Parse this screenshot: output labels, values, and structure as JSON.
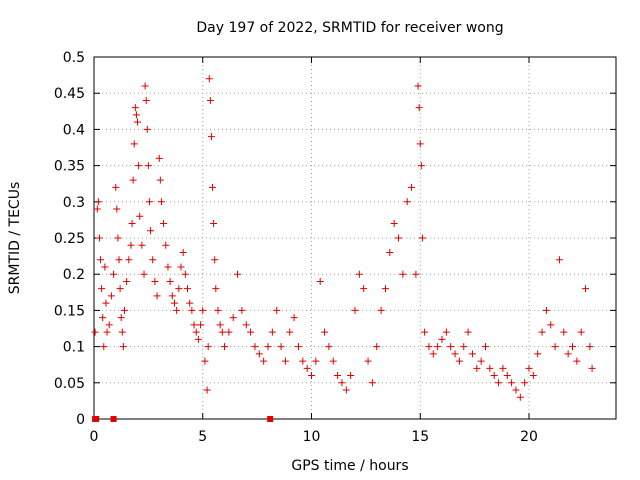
{
  "chart_data": {
    "type": "scatter",
    "title": "Day 197 of 2022, SRMTID for receiver wong",
    "xlabel": "GPS time / hours",
    "ylabel": "SRMTID / TECUs",
    "xlim": [
      0,
      24
    ],
    "ylim": [
      0,
      0.5
    ],
    "xticks": [
      0,
      5,
      10,
      15,
      20
    ],
    "xtick_labels": [
      "0",
      "5",
      "10",
      "15",
      "20"
    ],
    "yticks": [
      0,
      0.05,
      0.1,
      0.15,
      0.2,
      0.25,
      0.3,
      0.35,
      0.4,
      0.45,
      0.5
    ],
    "ytick_labels": [
      "0",
      "0.05",
      "0.1",
      "0.15",
      "0.2",
      "0.25",
      "0.3",
      "0.35",
      "0.4",
      "0.45",
      "0.5"
    ],
    "grid": true,
    "marker": "+",
    "color": "#e00000",
    "series": [
      {
        "name": "SRMTID",
        "points": [
          [
            0.05,
            0.12
          ],
          [
            0.15,
            0.29
          ],
          [
            0.2,
            0.3
          ],
          [
            0.25,
            0.25
          ],
          [
            0.3,
            0.22
          ],
          [
            0.35,
            0.18
          ],
          [
            0.4,
            0.14
          ],
          [
            0.45,
            0.1
          ],
          [
            0.5,
            0.21
          ],
          [
            0.55,
            0.16
          ],
          [
            0.6,
            0.12
          ],
          [
            0.7,
            0.13
          ],
          [
            0.8,
            0.17
          ],
          [
            0.9,
            0.2
          ],
          [
            1.0,
            0.32
          ],
          [
            1.05,
            0.29
          ],
          [
            1.1,
            0.25
          ],
          [
            1.15,
            0.22
          ],
          [
            1.2,
            0.18
          ],
          [
            1.25,
            0.14
          ],
          [
            1.3,
            0.12
          ],
          [
            1.35,
            0.1
          ],
          [
            1.4,
            0.15
          ],
          [
            1.5,
            0.19
          ],
          [
            1.6,
            0.22
          ],
          [
            1.7,
            0.24
          ],
          [
            1.75,
            0.27
          ],
          [
            1.8,
            0.33
          ],
          [
            1.85,
            0.38
          ],
          [
            1.9,
            0.43
          ],
          [
            1.95,
            0.42
          ],
          [
            2.0,
            0.41
          ],
          [
            2.05,
            0.35
          ],
          [
            2.1,
            0.28
          ],
          [
            2.2,
            0.24
          ],
          [
            2.3,
            0.2
          ],
          [
            2.35,
            0.46
          ],
          [
            2.4,
            0.44
          ],
          [
            2.45,
            0.4
          ],
          [
            2.5,
            0.35
          ],
          [
            2.55,
            0.3
          ],
          [
            2.6,
            0.26
          ],
          [
            2.7,
            0.22
          ],
          [
            2.8,
            0.19
          ],
          [
            2.9,
            0.17
          ],
          [
            3.0,
            0.36
          ],
          [
            3.05,
            0.33
          ],
          [
            3.1,
            0.3
          ],
          [
            3.2,
            0.27
          ],
          [
            3.3,
            0.24
          ],
          [
            3.4,
            0.21
          ],
          [
            3.5,
            0.19
          ],
          [
            3.6,
            0.17
          ],
          [
            3.7,
            0.16
          ],
          [
            3.8,
            0.15
          ],
          [
            3.9,
            0.18
          ],
          [
            4.0,
            0.21
          ],
          [
            4.1,
            0.23
          ],
          [
            4.2,
            0.2
          ],
          [
            4.3,
            0.18
          ],
          [
            4.4,
            0.16
          ],
          [
            4.5,
            0.15
          ],
          [
            4.6,
            0.13
          ],
          [
            4.7,
            0.12
          ],
          [
            4.8,
            0.11
          ],
          [
            4.9,
            0.13
          ],
          [
            5.0,
            0.15
          ],
          [
            5.1,
            0.08
          ],
          [
            5.2,
            0.04
          ],
          [
            5.25,
            0.1
          ],
          [
            5.3,
            0.47
          ],
          [
            5.35,
            0.44
          ],
          [
            5.4,
            0.39
          ],
          [
            5.45,
            0.32
          ],
          [
            5.5,
            0.27
          ],
          [
            5.55,
            0.22
          ],
          [
            5.6,
            0.18
          ],
          [
            5.7,
            0.15
          ],
          [
            5.8,
            0.13
          ],
          [
            5.9,
            0.12
          ],
          [
            6.0,
            0.1
          ],
          [
            6.2,
            0.12
          ],
          [
            6.4,
            0.14
          ],
          [
            6.6,
            0.2
          ],
          [
            6.8,
            0.15
          ],
          [
            7.0,
            0.13
          ],
          [
            7.2,
            0.12
          ],
          [
            7.4,
            0.1
          ],
          [
            7.6,
            0.09
          ],
          [
            7.8,
            0.08
          ],
          [
            8.0,
            0.1
          ],
          [
            8.2,
            0.12
          ],
          [
            8.4,
            0.15
          ],
          [
            8.6,
            0.1
          ],
          [
            8.8,
            0.08
          ],
          [
            9.0,
            0.12
          ],
          [
            9.2,
            0.14
          ],
          [
            9.4,
            0.1
          ],
          [
            9.6,
            0.08
          ],
          [
            9.8,
            0.07
          ],
          [
            10.0,
            0.06
          ],
          [
            10.2,
            0.08
          ],
          [
            10.4,
            0.19
          ],
          [
            10.6,
            0.12
          ],
          [
            10.8,
            0.1
          ],
          [
            11.0,
            0.08
          ],
          [
            11.2,
            0.06
          ],
          [
            11.4,
            0.05
          ],
          [
            11.6,
            0.04
          ],
          [
            11.8,
            0.06
          ],
          [
            12.0,
            0.15
          ],
          [
            12.2,
            0.2
          ],
          [
            12.4,
            0.18
          ],
          [
            12.6,
            0.08
          ],
          [
            12.8,
            0.05
          ],
          [
            13.0,
            0.1
          ],
          [
            13.2,
            0.15
          ],
          [
            13.4,
            0.18
          ],
          [
            13.6,
            0.23
          ],
          [
            13.8,
            0.27
          ],
          [
            14.0,
            0.25
          ],
          [
            14.2,
            0.2
          ],
          [
            14.4,
            0.3
          ],
          [
            14.6,
            0.32
          ],
          [
            14.8,
            0.2
          ],
          [
            14.9,
            0.46
          ],
          [
            14.95,
            0.43
          ],
          [
            15.0,
            0.38
          ],
          [
            15.05,
            0.35
          ],
          [
            15.1,
            0.25
          ],
          [
            15.2,
            0.12
          ],
          [
            15.4,
            0.1
          ],
          [
            15.6,
            0.09
          ],
          [
            15.8,
            0.1
          ],
          [
            16.0,
            0.11
          ],
          [
            16.2,
            0.12
          ],
          [
            16.4,
            0.1
          ],
          [
            16.6,
            0.09
          ],
          [
            16.8,
            0.08
          ],
          [
            17.0,
            0.1
          ],
          [
            17.2,
            0.12
          ],
          [
            17.4,
            0.09
          ],
          [
            17.6,
            0.07
          ],
          [
            17.8,
            0.08
          ],
          [
            18.0,
            0.1
          ],
          [
            18.2,
            0.07
          ],
          [
            18.4,
            0.06
          ],
          [
            18.6,
            0.05
          ],
          [
            18.8,
            0.07
          ],
          [
            19.0,
            0.06
          ],
          [
            19.2,
            0.05
          ],
          [
            19.4,
            0.04
          ],
          [
            19.6,
            0.03
          ],
          [
            19.8,
            0.05
          ],
          [
            20.0,
            0.07
          ],
          [
            20.2,
            0.06
          ],
          [
            20.4,
            0.09
          ],
          [
            20.6,
            0.12
          ],
          [
            20.8,
            0.15
          ],
          [
            21.0,
            0.13
          ],
          [
            21.2,
            0.1
          ],
          [
            21.4,
            0.22
          ],
          [
            21.6,
            0.12
          ],
          [
            21.8,
            0.09
          ],
          [
            22.0,
            0.1
          ],
          [
            22.2,
            0.08
          ],
          [
            22.4,
            0.12
          ],
          [
            22.6,
            0.18
          ],
          [
            22.8,
            0.1
          ],
          [
            22.9,
            0.07
          ]
        ]
      }
    ],
    "zero_markers": [
      0.05,
      0.1,
      0.9,
      8.1
    ]
  }
}
